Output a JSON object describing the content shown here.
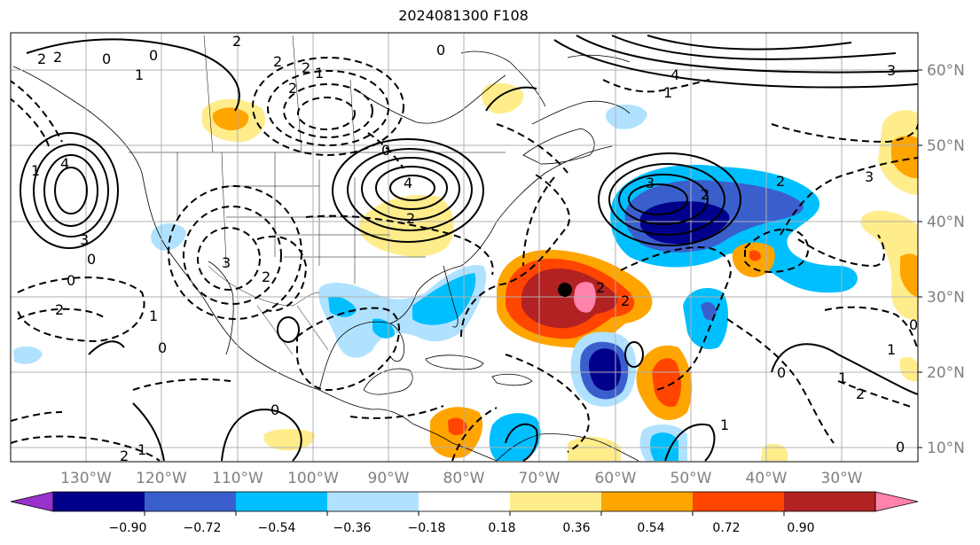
{
  "title": "2024081300 F108",
  "lat_labels": [
    "60°N",
    "50°N",
    "40°N",
    "30°N",
    "20°N",
    "10°N"
  ],
  "lon_labels": [
    "130°W",
    "120°W",
    "110°W",
    "100°W",
    "90°W",
    "80°W",
    "70°W",
    "60°W",
    "50°W",
    "40°W",
    "30°W"
  ],
  "colorbar": {
    "ticks": [
      "−0.90",
      "−0.72",
      "−0.54",
      "−0.36",
      "−0.18",
      "0.18",
      "0.36",
      "0.54",
      "0.72",
      "0.90"
    ],
    "colors": [
      "#9932cc",
      "#00008b",
      "#3a5fcd",
      "#00bfff",
      "#b0e2ff",
      "#ffffff",
      "#ffec8b",
      "#ffa500",
      "#ff4500",
      "#b22222",
      "#ff82ab"
    ]
  },
  "contour_labels": [
    {
      "t": "2"
    },
    {
      "t": "0"
    },
    {
      "t": "1"
    },
    {
      "t": "2"
    },
    {
      "t": "2"
    },
    {
      "t": "1"
    },
    {
      "t": "0"
    },
    {
      "t": "2"
    },
    {
      "t": "1"
    },
    {
      "t": "0"
    },
    {
      "t": "2"
    },
    {
      "t": "4"
    },
    {
      "t": "2"
    },
    {
      "t": "0"
    },
    {
      "t": "3"
    },
    {
      "t": "4"
    },
    {
      "t": "4"
    },
    {
      "t": "1"
    },
    {
      "t": "3"
    },
    {
      "t": "0"
    },
    {
      "t": "2"
    },
    {
      "t": "3"
    },
    {
      "t": "2"
    },
    {
      "t": "0"
    },
    {
      "t": "2"
    },
    {
      "t": "3"
    },
    {
      "t": "2"
    },
    {
      "t": "2"
    },
    {
      "t": "3"
    },
    {
      "t": "2"
    },
    {
      "t": "2"
    },
    {
      "t": "1"
    },
    {
      "t": "0"
    },
    {
      "t": "0"
    },
    {
      "t": "1"
    },
    {
      "t": "0"
    },
    {
      "t": "1"
    },
    {
      "t": "1"
    },
    {
      "t": "0"
    },
    {
      "t": "2"
    },
    {
      "t": "1"
    },
    {
      "t": "0"
    },
    {
      "t": "2"
    }
  ]
}
